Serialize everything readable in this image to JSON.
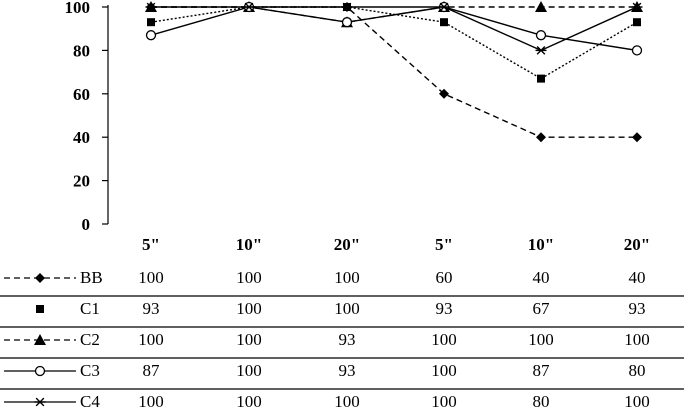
{
  "chart_data": {
    "type": "line",
    "categories": [
      "5\"",
      "10\"",
      "20\"",
      "5\"",
      "10\"",
      "20\""
    ],
    "ylim": [
      0,
      100
    ],
    "yticks": [
      0,
      20,
      40,
      60,
      80,
      100
    ],
    "grid": false,
    "legend": "data table below chart",
    "series": [
      {
        "name": "BB",
        "values": [
          100,
          100,
          100,
          60,
          40,
          40
        ],
        "line": "dashed",
        "marker": "diamond"
      },
      {
        "name": "C1",
        "values": [
          93,
          100,
          100,
          93,
          67,
          93
        ],
        "line": "dotted",
        "marker": "square"
      },
      {
        "name": "C2",
        "values": [
          100,
          100,
          93,
          100,
          100,
          100
        ],
        "line": "dashed",
        "marker": "triangle"
      },
      {
        "name": "C3",
        "values": [
          87,
          100,
          93,
          100,
          87,
          80
        ],
        "line": "solid",
        "marker": "circle-open"
      },
      {
        "name": "C4",
        "values": [
          100,
          100,
          100,
          100,
          80,
          100
        ],
        "line": "solid",
        "marker": "star"
      }
    ],
    "colors": {
      "line": "#000000",
      "background": "#ffffff"
    }
  }
}
